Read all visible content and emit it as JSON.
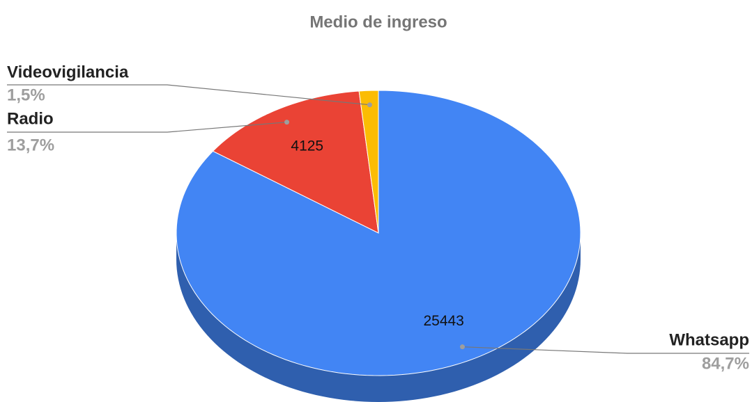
{
  "chart_data": {
    "type": "pie",
    "title": "Medio de ingreso",
    "categories": [
      "Whatsapp",
      "Radio",
      "Videovigilancia"
    ],
    "values": [
      25443,
      4125,
      460
    ],
    "percentages": [
      84.7,
      13.7,
      1.5
    ],
    "percentage_labels": [
      "84,7%",
      "13,7%",
      "1,5%"
    ],
    "colors": [
      "#4285f4",
      "#ea4335",
      "#fbbc04"
    ],
    "side_colors": [
      "#2f5fae",
      "#a83226",
      "#b58a05"
    ]
  }
}
